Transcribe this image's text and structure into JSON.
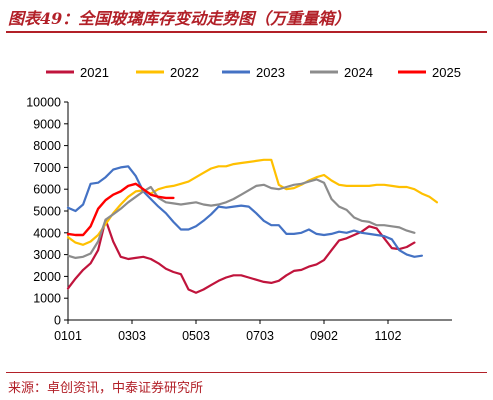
{
  "header": {
    "title": "图表49：全国玻璃库存变动走势图（万重量箱）"
  },
  "footer": {
    "source": "来源：卓创资讯，中泰证券研究所"
  },
  "chart_data": {
    "type": "line",
    "title": "全国玻璃库存变动走势图（万重量箱）",
    "xlabel": "",
    "ylabel": "",
    "ylim": [
      0,
      10000
    ],
    "yticks": [
      0,
      1000,
      2000,
      3000,
      4000,
      5000,
      6000,
      7000,
      8000,
      9000,
      10000
    ],
    "xlim": [
      1,
      52
    ],
    "xticks": [
      {
        "week": 1,
        "label": "0101"
      },
      {
        "week": 9.5,
        "label": "0303"
      },
      {
        "week": 18,
        "label": "0503"
      },
      {
        "week": 26.5,
        "label": "0703"
      },
      {
        "week": 35,
        "label": "0902"
      },
      {
        "week": 43.5,
        "label": "1102"
      }
    ],
    "grid": false,
    "legend_position": "top",
    "series": [
      {
        "name": "2021",
        "color": "#c0143c",
        "width": 2.2,
        "values": [
          1450,
          1900,
          2300,
          2600,
          3200,
          4600,
          3600,
          2900,
          2800,
          2850,
          2900,
          2800,
          2600,
          2350,
          2200,
          2100,
          1400,
          1250,
          1400,
          1600,
          1800,
          1950,
          2050,
          2050,
          1950,
          1850,
          1750,
          1700,
          1800,
          2050,
          2250,
          2300,
          2450,
          2550,
          2750,
          3200,
          3650,
          3750,
          3900,
          4050,
          4300,
          4200,
          3750,
          3300,
          3250,
          3350,
          3550
        ]
      },
      {
        "name": "2022",
        "color": "#ffc000",
        "width": 2.2,
        "values": [
          3800,
          3550,
          3450,
          3600,
          3900,
          4400,
          4900,
          5300,
          5650,
          5900,
          5950,
          5800,
          6000,
          6100,
          6150,
          6250,
          6350,
          6550,
          6750,
          6950,
          7050,
          7050,
          7150,
          7200,
          7250,
          7300,
          7350,
          7350,
          6200,
          6000,
          6050,
          6200,
          6400,
          6550,
          6650,
          6400,
          6200,
          6150,
          6150,
          6150,
          6150,
          6200,
          6200,
          6150,
          6100,
          6100,
          6000,
          5800,
          5650,
          5400
        ]
      },
      {
        "name": "2023",
        "color": "#4472c4",
        "width": 2.2,
        "values": [
          5150,
          5000,
          5300,
          6250,
          6300,
          6550,
          6900,
          7000,
          7050,
          6600,
          5900,
          5550,
          5200,
          4900,
          4500,
          4150,
          4150,
          4300,
          4550,
          4850,
          5200,
          5150,
          5200,
          5250,
          5200,
          4900,
          4550,
          4350,
          4350,
          3950,
          3950,
          4000,
          4150,
          3950,
          3900,
          3950,
          4050,
          4000,
          4100,
          4000,
          3950,
          3900,
          3850,
          3700,
          3200,
          3000,
          2900,
          2950
        ]
      },
      {
        "name": "2024",
        "color": "#8c8c8c",
        "width": 2.2,
        "values": [
          2950,
          2850,
          2900,
          3050,
          3600,
          4600,
          4850,
          5100,
          5400,
          5650,
          5900,
          6100,
          5600,
          5400,
          5350,
          5300,
          5350,
          5400,
          5300,
          5250,
          5300,
          5400,
          5550,
          5750,
          5950,
          6150,
          6200,
          6050,
          6000,
          6100,
          6200,
          6250,
          6350,
          6450,
          6300,
          5550,
          5200,
          5050,
          4700,
          4550,
          4500,
          4350,
          4350,
          4300,
          4250,
          4100,
          4000
        ]
      },
      {
        "name": "2025",
        "color": "#ff0000",
        "width": 2.4,
        "values": [
          3950,
          3900,
          3900,
          4300,
          5100,
          5500,
          5750,
          5900,
          6150,
          6250,
          6000,
          5750,
          5650,
          5600,
          5600
        ]
      }
    ]
  }
}
